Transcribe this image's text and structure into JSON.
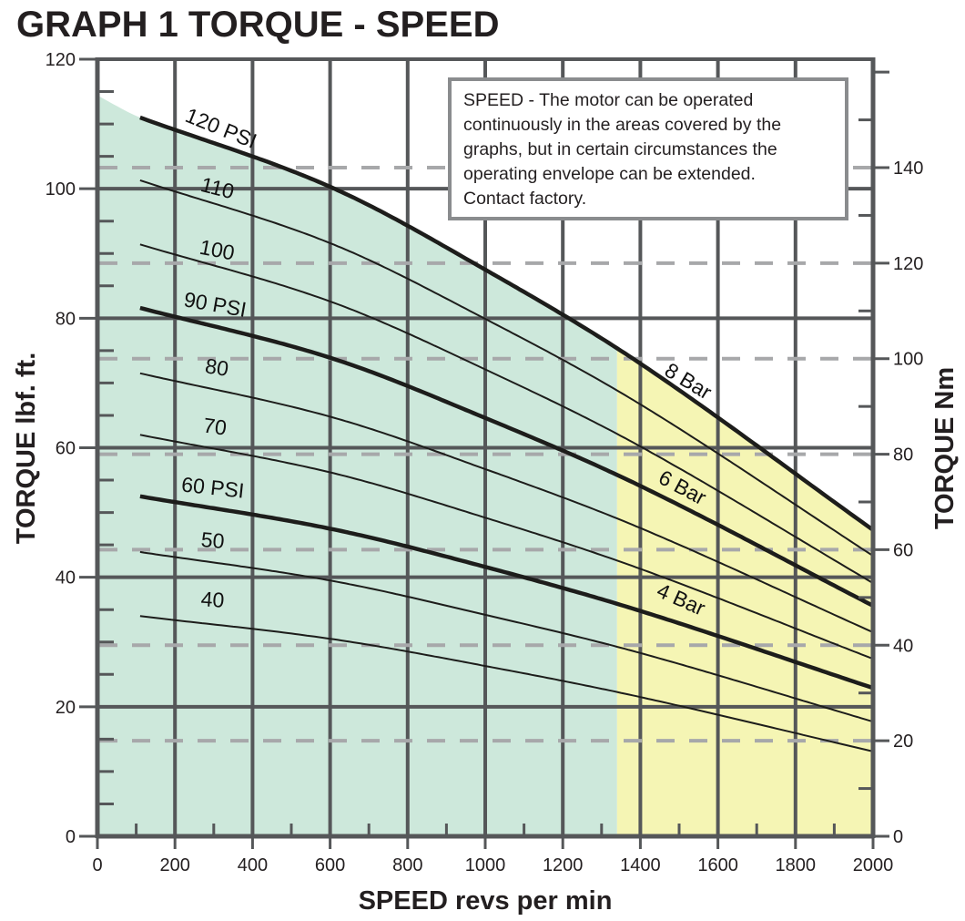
{
  "chart_data": {
    "type": "line",
    "title": "GRAPH 1 TORQUE - SPEED",
    "xlabel": "SPEED revs per min",
    "ylabel": "TORQUE lbf. ft.",
    "y2label": "TORQUE Nm",
    "xlim": [
      0,
      2000
    ],
    "ylim": [
      0,
      120
    ],
    "y2lim_nm": [
      0,
      162.7
    ],
    "xticks": [
      "0",
      "200",
      "400",
      "600",
      "800",
      "1000",
      "1200",
      "1400",
      "1600",
      "1800",
      "2000"
    ],
    "yticks": [
      "0",
      "20",
      "40",
      "60",
      "80",
      "100",
      "120"
    ],
    "y2ticks": [
      "0",
      "20",
      "40",
      "60",
      "80",
      "100",
      "120",
      "140"
    ],
    "grid": true,
    "regions": [
      {
        "name": "continuous",
        "color": "#cde8db",
        "x_range": [
          0,
          1340
        ],
        "top_torque_at_0": 114.4
      },
      {
        "name": "extended",
        "color": "#f5f5b4",
        "x_range": [
          1340,
          2000
        ]
      }
    ],
    "series": [
      {
        "name": "120 PSI",
        "label": "120 PSI",
        "bar_label": "8 Bar",
        "bold": true,
        "points": [
          [
            110,
            111
          ],
          [
            600,
            100.3
          ],
          [
            1000,
            87.5
          ],
          [
            1400,
            73
          ],
          [
            2000,
            47.3
          ]
        ]
      },
      {
        "name": "110",
        "label": "110",
        "bold": false,
        "points": [
          [
            110,
            101.3
          ],
          [
            600,
            91.6
          ],
          [
            1000,
            79.9
          ],
          [
            1400,
            66.7
          ],
          [
            2000,
            43.3
          ]
        ]
      },
      {
        "name": "100",
        "label": "100",
        "bold": false,
        "points": [
          [
            110,
            91.4
          ],
          [
            600,
            82.6
          ],
          [
            1000,
            72.1
          ],
          [
            1400,
            60.2
          ],
          [
            2000,
            39.1
          ]
        ]
      },
      {
        "name": "90 PSI",
        "label": "90 PSI",
        "bar_label": "6 Bar",
        "bold": true,
        "points": [
          [
            110,
            81.6
          ],
          [
            600,
            73.9
          ],
          [
            1000,
            64.6
          ],
          [
            1400,
            54.1
          ],
          [
            2000,
            35.6
          ]
        ]
      },
      {
        "name": "80",
        "label": "80",
        "bold": false,
        "points": [
          [
            110,
            71.5
          ],
          [
            600,
            64.8
          ],
          [
            1000,
            56.7
          ],
          [
            1400,
            47.6
          ],
          [
            2000,
            31.5
          ]
        ]
      },
      {
        "name": "70",
        "label": "70",
        "bold": false,
        "points": [
          [
            110,
            62
          ],
          [
            600,
            56.2
          ],
          [
            1000,
            49.2
          ],
          [
            1400,
            41.3
          ],
          [
            2000,
            27.4
          ]
        ]
      },
      {
        "name": "60 PSI",
        "label": "60 PSI",
        "bar_label": "4 Bar",
        "bold": true,
        "points": [
          [
            110,
            52.5
          ],
          [
            600,
            47.5
          ],
          [
            1000,
            41.6
          ],
          [
            1400,
            34.8
          ],
          [
            2000,
            22.9
          ]
        ]
      },
      {
        "name": "50",
        "label": "50",
        "bold": false,
        "points": [
          [
            110,
            43.9
          ],
          [
            600,
            39.5
          ],
          [
            1000,
            34.2
          ],
          [
            1400,
            28.3
          ],
          [
            2000,
            17.7
          ]
        ]
      },
      {
        "name": "40",
        "label": "40",
        "bold": false,
        "points": [
          [
            110,
            34
          ],
          [
            600,
            30.5
          ],
          [
            1000,
            26.3
          ],
          [
            1400,
            21.5
          ],
          [
            2000,
            13.1
          ]
        ]
      }
    ],
    "annotation": {
      "lines": [
        "SPEED - The motor can be operated",
        "continuously in the areas covered by the",
        "graphs, but in certain circumstances the",
        "operating envelope can be extended.",
        "Contact factory."
      ]
    },
    "colors": {
      "axis": "#555759",
      "dash": "#a7a8aa",
      "curve": "#1d1d1b",
      "green": "#cde8db",
      "yellow": "#f5f5b4"
    }
  }
}
